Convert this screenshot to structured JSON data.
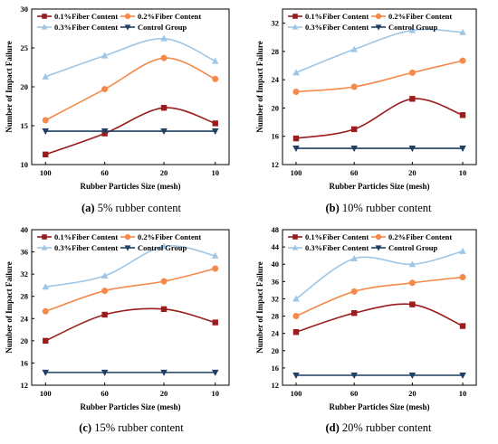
{
  "chart_data": [
    {
      "type": "line",
      "caption_letter": "(a)",
      "caption_text": " 5% rubber content",
      "xlabel": "Rubber Particles Size (mesh)",
      "ylabel": "Number of Impact Failure",
      "categories": [
        "100",
        "60",
        "20",
        "10"
      ],
      "ylim": [
        10,
        30
      ],
      "yticks": [
        10,
        15,
        20,
        25,
        30
      ],
      "legend_position": "top-left",
      "series": [
        {
          "name": "0.1%Fiber Content",
          "color": "#9b1c1c",
          "marker": "square",
          "values": [
            11.3,
            14.0,
            17.3,
            15.3
          ]
        },
        {
          "name": "0.2%Fiber Content",
          "color": "#f4894a",
          "marker": "circle",
          "values": [
            15.7,
            19.7,
            23.7,
            21.0
          ]
        },
        {
          "name": "0.3%Fiber Content",
          "color": "#9ec6e6",
          "marker": "triangle-up",
          "values": [
            21.3,
            24.0,
            26.2,
            23.3
          ]
        },
        {
          "name": "Control Group",
          "color": "#1f3f63",
          "marker": "triangle-down",
          "values": [
            14.3,
            14.3,
            14.3,
            14.3
          ]
        }
      ]
    },
    {
      "type": "line",
      "caption_letter": "(b)",
      "caption_text": " 10% rubber content",
      "xlabel": "Rubber Particles Size (mesh)",
      "ylabel": "Number of Impact Failure",
      "categories": [
        "100",
        "60",
        "20",
        "10"
      ],
      "ylim": [
        12,
        34
      ],
      "yticks": [
        12,
        16,
        20,
        24,
        28,
        32
      ],
      "legend_position": "top-left",
      "series": [
        {
          "name": "0.1%Fiber Content",
          "color": "#9b1c1c",
          "marker": "square",
          "values": [
            15.7,
            17.0,
            21.3,
            19.0
          ]
        },
        {
          "name": "0.2%Fiber Content",
          "color": "#f4894a",
          "marker": "circle",
          "values": [
            22.3,
            23.0,
            25.0,
            26.7
          ]
        },
        {
          "name": "0.3%Fiber Content",
          "color": "#9ec6e6",
          "marker": "triangle-up",
          "values": [
            25.0,
            28.3,
            31.0,
            30.7
          ]
        },
        {
          "name": "Control Group",
          "color": "#1f3f63",
          "marker": "triangle-down",
          "values": [
            14.3,
            14.3,
            14.3,
            14.3
          ]
        }
      ]
    },
    {
      "type": "line",
      "caption_letter": "(c)",
      "caption_text": " 15% rubber content",
      "xlabel": "Rubber Particles Size (mesh)",
      "ylabel": "Number of Impact Failure",
      "categories": [
        "100",
        "60",
        "20",
        "10"
      ],
      "ylim": [
        12,
        40
      ],
      "yticks": [
        12,
        16,
        20,
        24,
        28,
        32,
        36,
        40
      ],
      "legend_position": "top-left",
      "series": [
        {
          "name": "0.1%Fiber Content",
          "color": "#9b1c1c",
          "marker": "square",
          "values": [
            20.0,
            24.7,
            25.7,
            23.3
          ]
        },
        {
          "name": "0.2%Fiber Content",
          "color": "#f4894a",
          "marker": "circle",
          "values": [
            25.3,
            29.0,
            30.7,
            33.0
          ]
        },
        {
          "name": "0.3%Fiber Content",
          "color": "#9ec6e6",
          "marker": "triangle-up",
          "values": [
            29.7,
            31.7,
            37.0,
            35.3
          ]
        },
        {
          "name": "Control Group",
          "color": "#1f3f63",
          "marker": "triangle-down",
          "values": [
            14.3,
            14.3,
            14.3,
            14.3
          ]
        }
      ]
    },
    {
      "type": "line",
      "caption_letter": "(d)",
      "caption_text": " 20% rubber content",
      "xlabel": "Rubber Particles Size (mesh)",
      "ylabel": "Number of Impact Failure",
      "categories": [
        "100",
        "60",
        "20",
        "10"
      ],
      "ylim": [
        12,
        48
      ],
      "yticks": [
        12,
        16,
        20,
        24,
        28,
        32,
        36,
        40,
        44,
        48
      ],
      "legend_position": "top-left",
      "series": [
        {
          "name": "0.1%Fiber Content",
          "color": "#9b1c1c",
          "marker": "square",
          "values": [
            24.3,
            28.7,
            30.7,
            25.7
          ]
        },
        {
          "name": "0.2%Fiber Content",
          "color": "#f4894a",
          "marker": "circle",
          "values": [
            28.0,
            33.7,
            35.7,
            37.0
          ]
        },
        {
          "name": "0.3%Fiber Content",
          "color": "#9ec6e6",
          "marker": "triangle-up",
          "values": [
            32.0,
            41.3,
            40.0,
            43.0
          ]
        },
        {
          "name": "Control Group",
          "color": "#1f3f63",
          "marker": "triangle-down",
          "values": [
            14.3,
            14.3,
            14.3,
            14.3
          ]
        }
      ]
    }
  ]
}
